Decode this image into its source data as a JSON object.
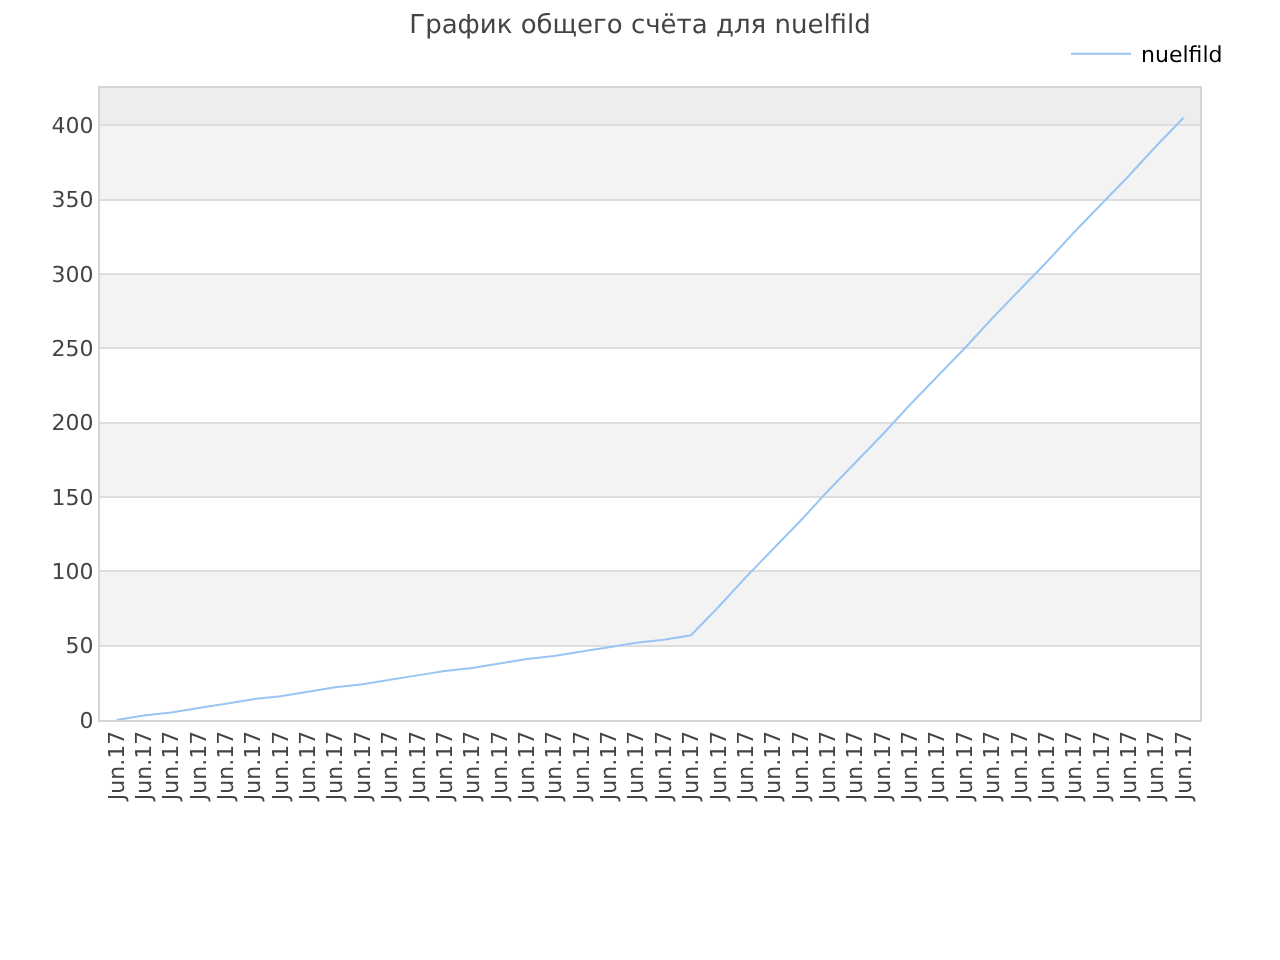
{
  "chart_data": {
    "type": "line",
    "title": "График общего счёта для nuelfild",
    "categories": [
      "Jun.17",
      "Jun.17",
      "Jun.17",
      "Jun.17",
      "Jun.17",
      "Jun.17",
      "Jun.17",
      "Jun.17",
      "Jun.17",
      "Jun.17",
      "Jun.17",
      "Jun.17",
      "Jun.17",
      "Jun.17",
      "Jun.17",
      "Jun.17",
      "Jun.17",
      "Jun.17",
      "Jun.17",
      "Jun.17",
      "Jun.17",
      "Jun.17",
      "Jun.17",
      "Jun.17",
      "Jun.17",
      "Jun.17",
      "Jun.17",
      "Jun.17",
      "Jun.17",
      "Jun.17",
      "Jun.17",
      "Jun.17",
      "Jun.17",
      "Jun.17",
      "Jun.17",
      "Jun.17",
      "Jun.17",
      "Jun.17",
      "Jun.17",
      "Jun.17"
    ],
    "series": [
      {
        "name": "nuelfild",
        "color": "#99c5f2",
        "values": [
          0,
          3,
          5,
          8,
          11,
          14,
          16,
          19,
          22,
          24,
          27,
          30,
          33,
          35,
          38,
          41,
          43,
          46,
          49,
          52,
          54,
          57,
          76,
          96,
          115,
          134,
          154,
          173,
          192,
          212,
          231,
          250,
          270,
          289,
          308,
          328,
          347,
          366,
          386,
          405
        ]
      }
    ],
    "ylim": [
      0,
      425
    ],
    "yticks": [
      0,
      50,
      100,
      150,
      200,
      250,
      300,
      350,
      400
    ],
    "grid": "y",
    "legend": "top right",
    "marker": "none",
    "line_style": "solid",
    "bands": [
      {
        "axis": "y",
        "from": 50,
        "to": 100,
        "color": "#f3f3f3"
      },
      {
        "axis": "y",
        "from": 150,
        "to": 200,
        "color": "#f3f3f3"
      },
      {
        "axis": "y",
        "from": 250,
        "to": 300,
        "color": "#f3f3f3"
      },
      {
        "axis": "y",
        "from": 350,
        "to": 400,
        "color": "#f3f3f3"
      },
      {
        "axis": "y",
        "from": 400,
        "to": 425,
        "color": "#ededed"
      }
    ]
  }
}
